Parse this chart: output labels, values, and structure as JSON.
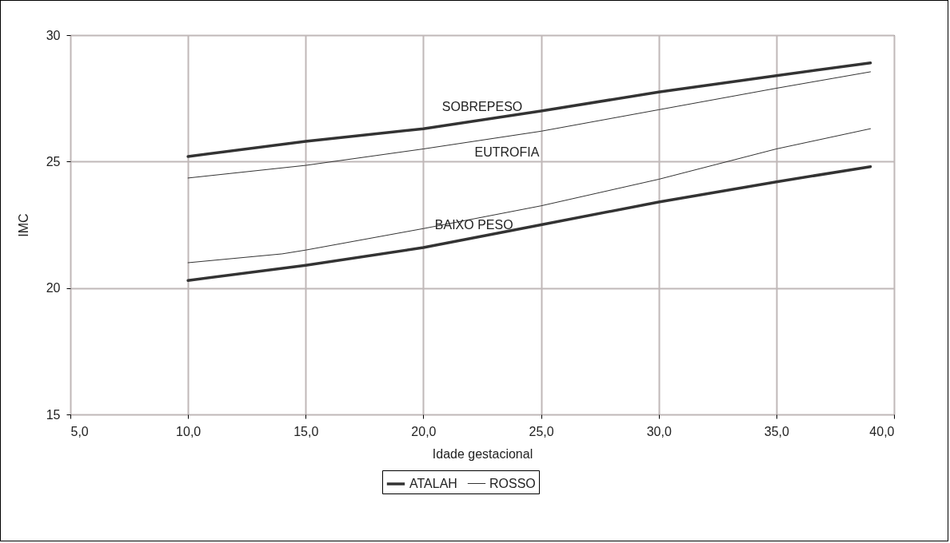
{
  "chart_data": {
    "type": "line",
    "xlabel": "Idade gestacional",
    "ylabel": "IMC",
    "xlim": [
      5,
      40
    ],
    "xticks": [
      {
        "value": 5,
        "label": "5,0"
      },
      {
        "value": 10,
        "label": "10,0"
      },
      {
        "value": 15,
        "label": "15,0"
      },
      {
        "value": 20,
        "label": "20,0"
      },
      {
        "value": 25,
        "label": "25,0"
      },
      {
        "value": 30,
        "label": "30,0"
      },
      {
        "value": 35,
        "label": "35,0"
      },
      {
        "value": 40,
        "label": "40,0"
      }
    ],
    "ylim": [
      15,
      30
    ],
    "yticks": [
      15,
      20,
      25,
      30
    ],
    "grid": true,
    "legend": "bottom",
    "series": [
      {
        "name": "ATALAH",
        "color": "#333333",
        "x": [
          10,
          15,
          20,
          25,
          30,
          35,
          39
        ],
        "values": [
          25.2,
          25.8,
          26.3,
          27.0,
          27.75,
          28.4,
          28.9
        ]
      },
      {
        "name": "ROSSO",
        "color": "#333333",
        "x": [
          10,
          15,
          20,
          25,
          30,
          35,
          39
        ],
        "values": [
          24.35,
          24.85,
          25.5,
          26.2,
          27.05,
          27.9,
          28.55
        ]
      },
      {
        "color": "#333333",
        "x": [
          10,
          15,
          20,
          25,
          30,
          35,
          39
        ],
        "values": [
          20.3,
          20.9,
          21.6,
          22.5,
          23.4,
          24.2,
          24.8
        ]
      },
      {
        "color": "#333333",
        "x": [
          10,
          14,
          15,
          20,
          25,
          30,
          35,
          39
        ],
        "values": [
          21.0,
          21.35,
          21.5,
          22.35,
          23.25,
          24.3,
          25.5,
          26.3
        ]
      }
    ],
    "annotations": [
      "SOBREPESO",
      "EUTROFIA",
      "BAIXO PESO"
    ]
  }
}
